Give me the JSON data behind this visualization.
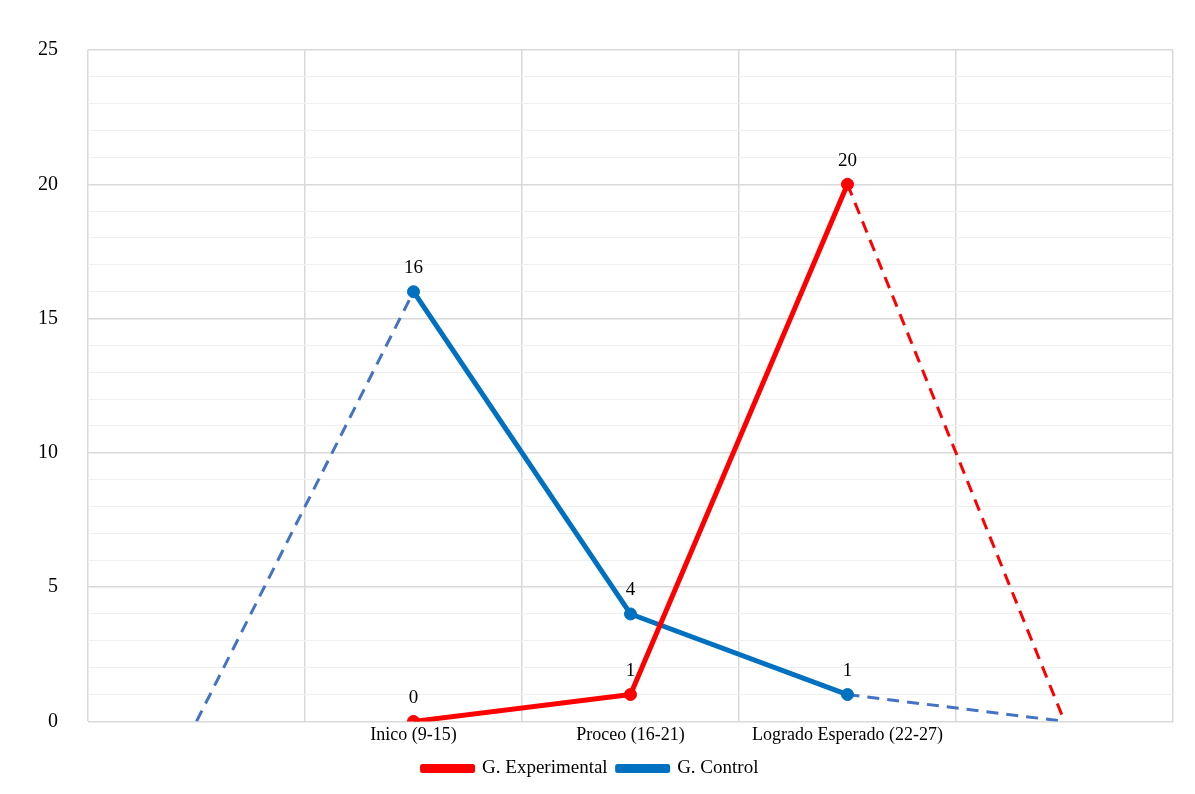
{
  "chart_data": {
    "type": "line",
    "categories": [
      null,
      "Inico (9-15)",
      "Proceo (16-21)",
      "Logrado Esperado (22-27)",
      null
    ],
    "ylim": [
      0,
      25
    ],
    "yticks": [
      0,
      {
        "value": 1,
        "label": null
      },
      {
        "value": 2,
        "label": null
      },
      {
        "value": 3,
        "label": null
      },
      {
        "value": 4,
        "label": null
      },
      5,
      {
        "value": 6,
        "label": null
      },
      {
        "value": 7,
        "label": null
      },
      {
        "value": 8,
        "label": null
      },
      {
        "value": 9,
        "label": null
      },
      10,
      {
        "value": 11,
        "label": null
      },
      {
        "value": 12,
        "label": null
      },
      {
        "value": 13,
        "label": null
      },
      {
        "value": 14,
        "label": null
      },
      15,
      {
        "value": 16,
        "label": null
      },
      {
        "value": 17,
        "label": null
      },
      {
        "value": 18,
        "label": null
      },
      {
        "value": 19,
        "label": null
      },
      20,
      {
        "value": 21,
        "label": null
      },
      {
        "value": 22,
        "label": null
      },
      {
        "value": 23,
        "label": null
      },
      {
        "value": 24,
        "label": null
      },
      25
    ],
    "grid": true,
    "legend": "bottom",
    "marker": "circle",
    "series": [
      {
        "name": "G. Experimental",
        "color": "#ff0000",
        "values": [
          null,
          0,
          1,
          20,
          null
        ],
        "value_labels": [
          null,
          "0",
          "1",
          "20",
          null
        ]
      },
      {
        "name": "G. Control",
        "color": "#0070c0",
        "values": [
          null,
          16,
          4,
          1,
          null
        ],
        "value_labels": [
          null,
          "16",
          "4",
          "1",
          null
        ]
      },
      {
        "color": "#4472c4",
        "values": [
          0,
          16,
          null,
          null,
          null
        ],
        "line_style": "dashed",
        "marker": "none"
      },
      {
        "color": "#4472c4",
        "values": [
          null,
          null,
          null,
          1,
          0
        ],
        "line_style": "dashed",
        "marker": "none"
      },
      {
        "color": "#ff0000",
        "values": [
          null,
          null,
          null,
          20,
          0
        ],
        "line_style": "dashed",
        "marker": "none"
      }
    ]
  }
}
